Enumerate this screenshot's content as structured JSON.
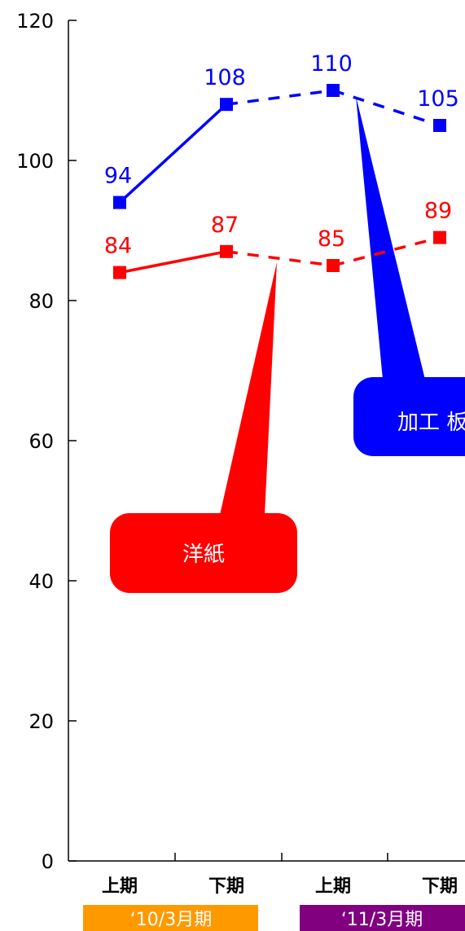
{
  "chart_data": {
    "type": "line",
    "categories": [
      "上期",
      "下期",
      "上期",
      "下期"
    ],
    "periods": [
      {
        "label": "‘10/3月期",
        "color": "#FF9900"
      },
      {
        "label": "‘11/3月期",
        "color": "#800080"
      }
    ],
    "ylim": [
      0,
      120
    ],
    "yticks": [
      "0",
      "20",
      "40",
      "60",
      "80",
      "100",
      "120"
    ],
    "series": [
      {
        "name": "加工 板",
        "color": "#0000FF",
        "values": [
          94,
          108,
          110,
          105
        ]
      },
      {
        "name": "洋紙",
        "color": "#FF0000",
        "values": [
          84,
          87,
          85,
          89
        ]
      }
    ],
    "line_style": [
      "solid",
      "dashed",
      "dashed"
    ]
  }
}
